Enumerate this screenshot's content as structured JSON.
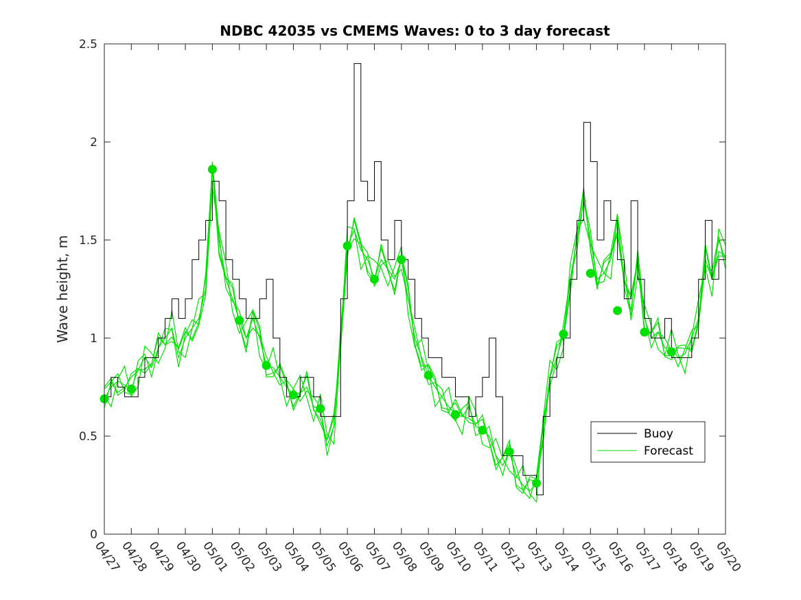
{
  "chart_data": {
    "type": "line",
    "title": "NDBC 42035 vs CMEMS Waves: 0 to 3 day forecast",
    "xlabel": "",
    "ylabel": "Wave height, m",
    "x_start": "04/27",
    "x_end": "05/20",
    "x_tick_labels": [
      "04/27",
      "04/28",
      "04/29",
      "04/30",
      "05/01",
      "05/02",
      "05/03",
      "05/04",
      "05/05",
      "05/06",
      "05/07",
      "05/08",
      "05/09",
      "05/10",
      "05/11",
      "05/12",
      "05/13",
      "05/14",
      "05/15",
      "05/16",
      "05/17",
      "05/18",
      "05/19",
      "05/20"
    ],
    "ylim": [
      0,
      2.5
    ],
    "y_ticks": [
      0,
      0.5,
      1,
      1.5,
      2,
      2.5
    ],
    "y_tick_labels": [
      "0",
      "0.5",
      "1",
      "1.5",
      "2",
      "2.5"
    ],
    "grid": false,
    "legend_position": "bottom-right",
    "colors": {
      "buoy": "#000000",
      "forecast": "#00e000",
      "axes": "#262626"
    },
    "series": [
      {
        "name": "Buoy",
        "style": "step",
        "x": [
          "04/27 00:00",
          "04/27 06:00",
          "04/27 12:00",
          "04/27 18:00",
          "04/28 00:00",
          "04/28 06:00",
          "04/28 12:00",
          "04/28 18:00",
          "04/29 00:00",
          "04/29 06:00",
          "04/29 12:00",
          "04/29 18:00",
          "04/30 00:00",
          "04/30 06:00",
          "04/30 12:00",
          "04/30 18:00",
          "05/01 00:00",
          "05/01 06:00",
          "05/01 12:00",
          "05/01 18:00",
          "05/02 00:00",
          "05/02 06:00",
          "05/02 12:00",
          "05/02 18:00",
          "05/03 00:00",
          "05/03 06:00",
          "05/03 12:00",
          "05/03 18:00",
          "05/04 00:00",
          "05/04 06:00",
          "05/04 12:00",
          "05/04 18:00",
          "05/05 00:00",
          "05/05 06:00",
          "05/05 12:00",
          "05/05 18:00",
          "05/06 00:00",
          "05/06 06:00",
          "05/06 12:00",
          "05/06 18:00",
          "05/07 00:00",
          "05/07 06:00",
          "05/07 12:00",
          "05/07 18:00",
          "05/08 00:00",
          "05/08 06:00",
          "05/08 12:00",
          "05/08 18:00",
          "05/09 00:00",
          "05/09 06:00",
          "05/09 12:00",
          "05/09 18:00",
          "05/10 00:00",
          "05/10 06:00",
          "05/10 12:00",
          "05/10 18:00",
          "05/11 00:00",
          "05/11 06:00",
          "05/11 12:00",
          "05/11 18:00",
          "05/12 00:00",
          "05/12 06:00",
          "05/12 12:00",
          "05/12 18:00",
          "05/13 00:00",
          "05/13 06:00",
          "05/13 12:00",
          "05/13 18:00",
          "05/14 00:00",
          "05/14 06:00",
          "05/14 12:00",
          "05/14 18:00",
          "05/15 00:00",
          "05/15 06:00",
          "05/15 12:00",
          "05/15 18:00",
          "05/16 00:00",
          "05/16 06:00",
          "05/16 12:00",
          "05/16 18:00",
          "05/17 00:00",
          "05/17 06:00",
          "05/17 12:00",
          "05/17 18:00",
          "05/18 00:00",
          "05/18 06:00",
          "05/18 12:00",
          "05/18 18:00",
          "05/19 00:00",
          "05/19 06:00",
          "05/19 12:00",
          "05/19 18:00",
          "05/20 00:00"
        ],
        "values": [
          0.7,
          0.8,
          0.75,
          0.7,
          0.7,
          0.8,
          0.9,
          0.9,
          1.0,
          1.1,
          1.2,
          1.1,
          1.2,
          1.4,
          1.5,
          1.6,
          1.8,
          1.7,
          1.4,
          1.3,
          1.2,
          1.1,
          1.1,
          1.2,
          1.3,
          1.0,
          0.8,
          0.7,
          0.7,
          0.8,
          0.8,
          0.7,
          0.6,
          0.6,
          0.6,
          1.2,
          1.7,
          2.4,
          1.8,
          1.7,
          1.9,
          1.5,
          1.4,
          1.6,
          1.4,
          1.3,
          1.1,
          1.0,
          0.9,
          0.9,
          0.8,
          0.8,
          0.7,
          0.7,
          0.6,
          0.7,
          0.8,
          1.0,
          0.7,
          0.4,
          0.4,
          0.4,
          0.3,
          0.3,
          0.2,
          0.6,
          0.8,
          0.9,
          1.0,
          1.3,
          1.6,
          2.1,
          1.9,
          1.5,
          1.7,
          1.6,
          1.4,
          1.2,
          1.7,
          1.3,
          1.1,
          1.0,
          1.0,
          1.1,
          0.9,
          0.9,
          0.9,
          1.0,
          1.3,
          1.6,
          1.3,
          1.4,
          1.4
        ]
      },
      {
        "name": "Forecast",
        "style": "ensemble",
        "x": [
          "04/27 00:00",
          "04/27 06:00",
          "04/27 12:00",
          "04/27 18:00",
          "04/28 00:00",
          "04/28 06:00",
          "04/28 12:00",
          "04/28 18:00",
          "04/29 00:00",
          "04/29 06:00",
          "04/29 12:00",
          "04/29 18:00",
          "04/30 00:00",
          "04/30 06:00",
          "04/30 12:00",
          "04/30 18:00",
          "05/01 00:00",
          "05/01 06:00",
          "05/01 12:00",
          "05/01 18:00",
          "05/02 00:00",
          "05/02 06:00",
          "05/02 12:00",
          "05/02 18:00",
          "05/03 00:00",
          "05/03 06:00",
          "05/03 12:00",
          "05/03 18:00",
          "05/04 00:00",
          "05/04 06:00",
          "05/04 12:00",
          "05/04 18:00",
          "05/05 00:00",
          "05/05 06:00",
          "05/05 12:00",
          "05/05 18:00",
          "05/06 00:00",
          "05/06 06:00",
          "05/06 12:00",
          "05/06 18:00",
          "05/07 00:00",
          "05/07 06:00",
          "05/07 12:00",
          "05/07 18:00",
          "05/08 00:00",
          "05/08 06:00",
          "05/08 12:00",
          "05/08 18:00",
          "05/09 00:00",
          "05/09 06:00",
          "05/09 12:00",
          "05/09 18:00",
          "05/10 00:00",
          "05/10 06:00",
          "05/10 12:00",
          "05/10 18:00",
          "05/11 00:00",
          "05/11 06:00",
          "05/11 12:00",
          "05/11 18:00",
          "05/12 00:00",
          "05/12 06:00",
          "05/12 12:00",
          "05/12 18:00",
          "05/13 00:00",
          "05/13 06:00",
          "05/13 12:00",
          "05/13 18:00",
          "05/14 00:00",
          "05/14 06:00",
          "05/14 12:00",
          "05/14 18:00",
          "05/15 00:00",
          "05/15 06:00",
          "05/15 12:00",
          "05/15 18:00",
          "05/16 00:00",
          "05/16 06:00",
          "05/16 12:00",
          "05/16 18:00",
          "05/17 00:00",
          "05/17 06:00",
          "05/17 12:00",
          "05/17 18:00",
          "05/18 00:00",
          "05/18 06:00",
          "05/18 12:00",
          "05/18 18:00",
          "05/19 00:00",
          "05/19 06:00",
          "05/19 12:00",
          "05/19 18:00",
          "05/20 00:00"
        ],
        "values": [
          0.69,
          0.75,
          0.78,
          0.76,
          0.74,
          0.84,
          0.9,
          0.85,
          0.95,
          1.0,
          1.05,
          0.9,
          1.0,
          1.05,
          1.1,
          1.25,
          1.86,
          1.5,
          1.3,
          1.2,
          1.09,
          1.0,
          1.1,
          1.0,
          0.86,
          0.85,
          0.8,
          0.75,
          0.71,
          0.72,
          0.75,
          0.65,
          0.64,
          0.45,
          0.55,
          1.0,
          1.47,
          1.55,
          1.45,
          1.4,
          1.3,
          1.4,
          1.35,
          1.3,
          1.4,
          1.2,
          1.0,
          0.9,
          0.81,
          0.75,
          0.7,
          0.65,
          0.61,
          0.6,
          0.65,
          0.55,
          0.53,
          0.5,
          0.4,
          0.35,
          0.42,
          0.3,
          0.25,
          0.22,
          0.26,
          0.55,
          0.8,
          0.9,
          1.02,
          1.3,
          1.5,
          1.7,
          1.5,
          1.3,
          1.33,
          1.4,
          1.6,
          1.3,
          1.14,
          1.4,
          1.1,
          1.0,
          1.03,
          0.95,
          0.95,
          0.9,
          0.92,
          1.0,
          1.1,
          1.4,
          1.3,
          1.5,
          1.4
        ]
      }
    ],
    "forecast_markers": {
      "x": [
        "04/27",
        "04/28",
        "05/01",
        "05/02",
        "05/03",
        "05/04",
        "05/05",
        "05/06",
        "05/07",
        "05/08",
        "05/09",
        "05/10",
        "05/11",
        "05/12",
        "05/13",
        "05/14",
        "05/15",
        "05/16",
        "05/17",
        "05/18"
      ],
      "values": [
        0.69,
        0.74,
        1.86,
        1.09,
        0.86,
        0.71,
        0.64,
        1.47,
        1.3,
        1.4,
        0.81,
        0.61,
        0.53,
        0.42,
        0.26,
        1.02,
        1.33,
        1.14,
        1.03,
        0.93
      ]
    },
    "legend": [
      {
        "label": "Buoy",
        "color": "#000000"
      },
      {
        "label": "Forecast",
        "color": "#00e000"
      }
    ]
  }
}
